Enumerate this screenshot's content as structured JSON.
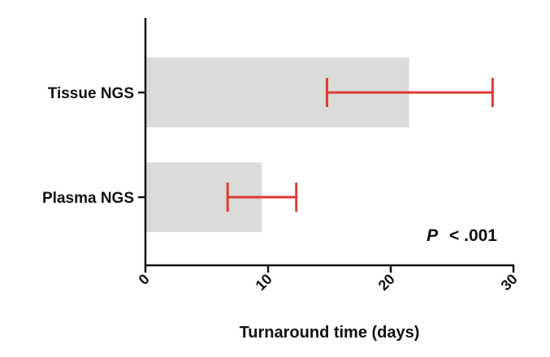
{
  "chart_data": {
    "type": "bar",
    "orientation": "horizontal",
    "categories": [
      "Tissue NGS",
      "Plasma NGS"
    ],
    "values": [
      21.5,
      9.5
    ],
    "error_bars": [
      {
        "low": 14.8,
        "high": 28.3
      },
      {
        "low": 6.7,
        "high": 12.3
      }
    ],
    "xlabel": "Turnaround time (days)",
    "ylabel": "",
    "xlim": [
      0,
      30
    ],
    "xticks": [
      "0",
      "10",
      "20",
      "30"
    ],
    "annotation": {
      "p_label": "P",
      "rest": "< .001"
    },
    "grid": false,
    "colors": {
      "bar": "#d9dcd9",
      "error_bar": "#e03a33",
      "axis": "#111111"
    }
  }
}
